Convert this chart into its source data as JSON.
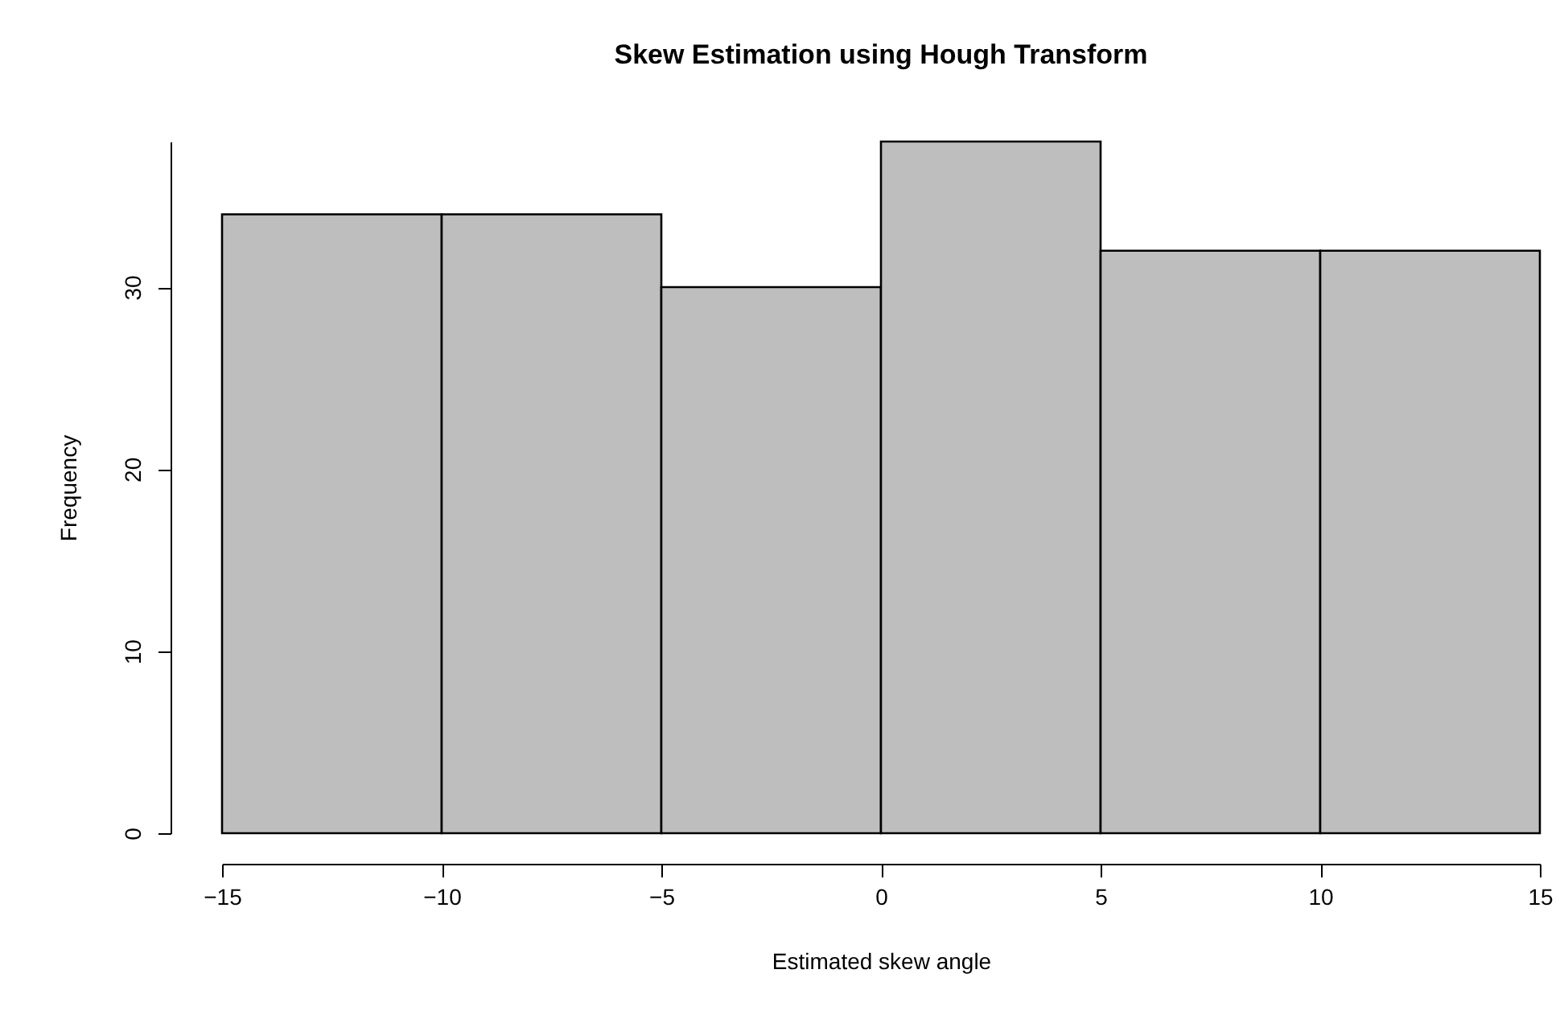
{
  "chart_data": {
    "type": "histogram",
    "title": "Skew Estimation using Hough Transform",
    "xlabel": "Estimated skew angle",
    "ylabel": "Frequency",
    "bins": [
      -15,
      -10,
      -5,
      0,
      5,
      10,
      15
    ],
    "values": [
      34,
      34,
      30,
      38,
      32,
      32
    ],
    "color": "#bebebe",
    "xlim": [
      -15,
      15
    ],
    "xticks": [
      -15,
      -10,
      -5,
      0,
      5,
      10,
      15
    ],
    "ylim": [
      0,
      38
    ],
    "yticks": [
      0,
      10,
      20,
      30
    ],
    "grid": false
  }
}
